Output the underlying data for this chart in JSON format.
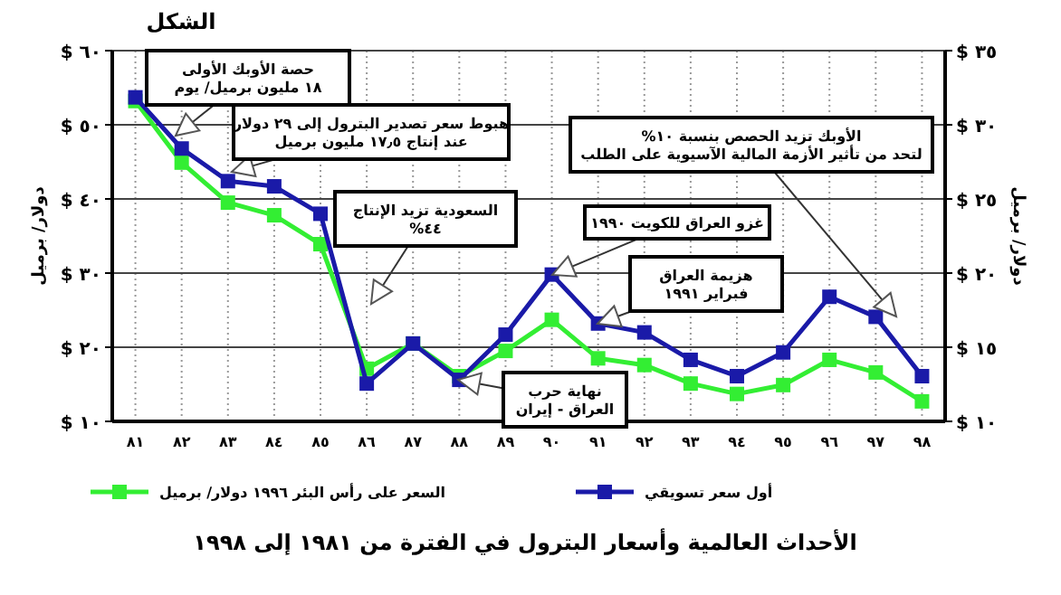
{
  "chart_data": {
    "type": "line",
    "title": "الشكل",
    "categories": [
      "٨١",
      "٨٢",
      "٨٣",
      "٨٤",
      "٨٥",
      "٨٦",
      "٨٧",
      "٨٨",
      "٨٩",
      "٩٠",
      "٩١",
      "٩٢",
      "٩٣",
      "٩٤",
      "٩٥",
      "٩٦",
      "٩٧",
      "٩٨"
    ],
    "series": [
      {
        "name": "السعر على رأس البئر ١٩٩٦ دولار/ برميل",
        "color": "#33ee33",
        "values": [
          53.2,
          44.9,
          39.5,
          37.8,
          33.9,
          17.1,
          20.5,
          16.1,
          19.5,
          23.7,
          18.5,
          17.6,
          15.1,
          13.7,
          14.9,
          18.3,
          16.6,
          12.7
        ]
      },
      {
        "name": "أول سعر تسويقي",
        "color": "#1a1aa8",
        "values": [
          53.7,
          46.8,
          42.4,
          41.7,
          38.0,
          15.1,
          20.5,
          15.6,
          21.7,
          29.8,
          23.2,
          22.0,
          18.3,
          16.1,
          19.3,
          26.8,
          24.1,
          16.1
        ]
      }
    ],
    "ylabel": "دولار/ برميل",
    "y2label": "دولار/ برميل",
    "ylim": [
      10,
      60
    ],
    "yticks": [
      {
        "value": 10,
        "label": "$ ١٠"
      },
      {
        "value": 20,
        "label": "$ ٢٠"
      },
      {
        "value": 30,
        "label": "$ ٣٠"
      },
      {
        "value": 40,
        "label": "$ ٤٠"
      },
      {
        "value": 50,
        "label": "$ ٥٠"
      },
      {
        "value": 60,
        "label": "$ ٦٠"
      }
    ],
    "y2lim": [
      10,
      35
    ],
    "y2ticks": [
      {
        "value": 10,
        "label": "$ ١٠"
      },
      {
        "value": 15,
        "label": "$ ١٥"
      },
      {
        "value": 20,
        "label": "$ ٢٠"
      },
      {
        "value": 25,
        "label": "$ ٢٥"
      },
      {
        "value": 30,
        "label": "$ ٣٠"
      },
      {
        "value": 35,
        "label": "$ ٣٥"
      }
    ],
    "grid": true,
    "legend": "bottom",
    "marker": "square",
    "line_style": "solid",
    "annotations": [
      "حصة الأوبك الأولى\n١٨ مليون برميل/ يوم",
      "هبوط سعر تصدير البترول إلى ٢٩ دولار\nعند إنتاج ١٧٫٥ مليون برميل",
      "السعودية تزيد الإنتاج\n٤٤%",
      "غزو العراق للكويت ١٩٩٠",
      "هزيمة العراق\nفبراير ١٩٩١",
      "نهاية حرب\nالعراق - إيران",
      "الأوبك تزيد الحصص بنسبة ١٠%\nلتحد من تأثير الأزمة المالية الآسيوية على الطلب",
      "الأحداث العالمية وأسعار البترول في الفترة من ١٩٨١ إلى ١٩٩٨"
    ]
  }
}
